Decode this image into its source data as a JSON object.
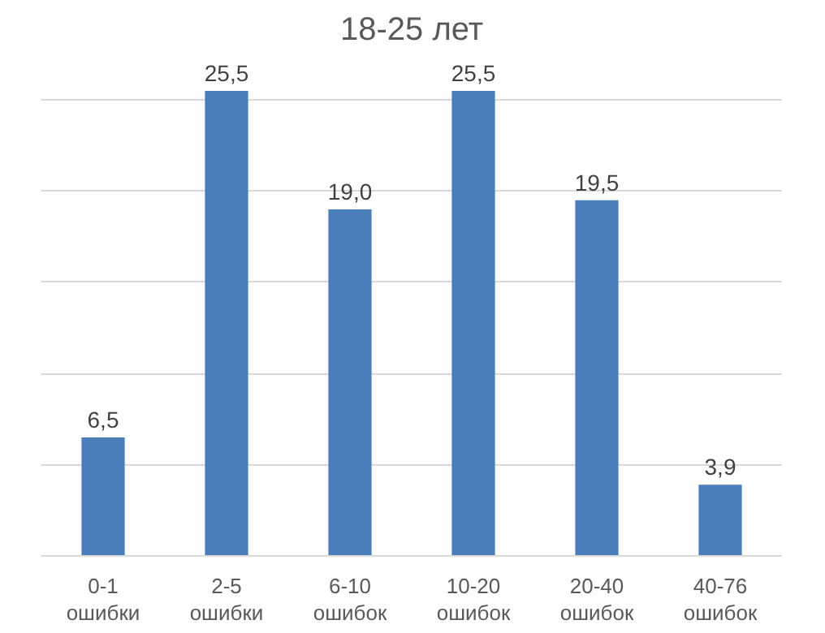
{
  "chart_data": {
    "type": "bar",
    "title": "18-25 лет",
    "categories": [
      "0-1\nошибки",
      "2-5\nошибки",
      "6-10\nошибок",
      "10-20\nошибок",
      "20-40\nошибок",
      "40-76\nошибок"
    ],
    "values": [
      6.5,
      25.5,
      19.0,
      25.5,
      19.5,
      3.9
    ],
    "value_labels": [
      "6,5",
      "25,5",
      "19,0",
      "25,5",
      "19,5",
      "3,9"
    ],
    "color": "#4a7ebb",
    "grid": "y",
    "tick_labels": "x"
  }
}
